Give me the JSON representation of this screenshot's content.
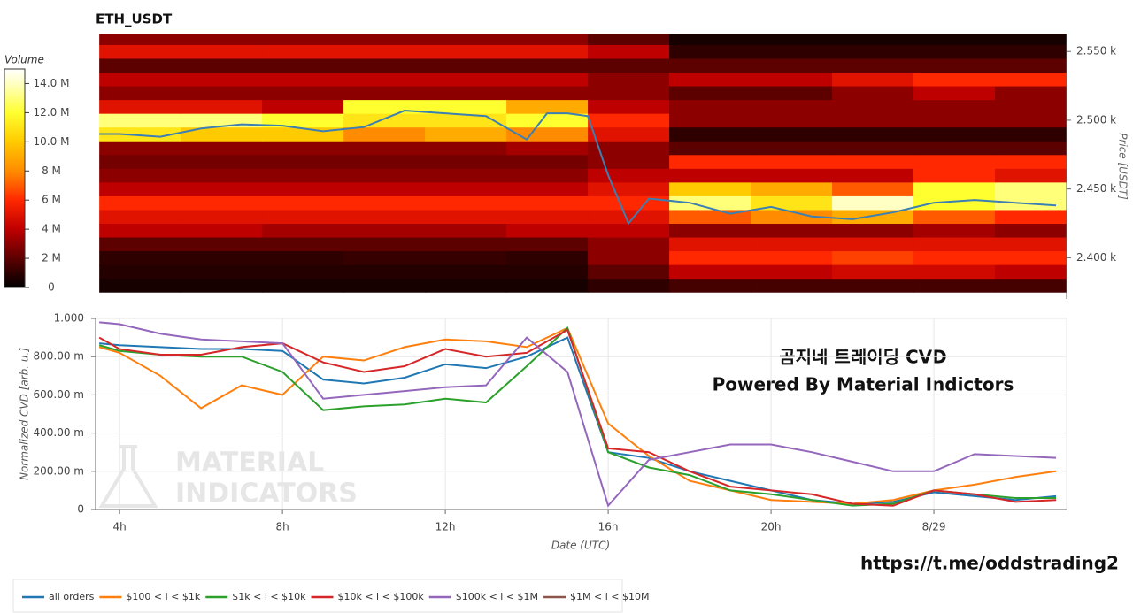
{
  "chart_data": [
    {
      "type": "heatmap",
      "title": "ETH_USDT",
      "colorbar_title": "Volume",
      "y_label": "Price [USDT]",
      "xlim": [
        3.41,
        27.26
      ],
      "ylim": [
        2370,
        2563
      ],
      "clim": [
        0,
        15
      ],
      "yticks": [
        {
          "value": 2400,
          "label": "2.400 k"
        },
        {
          "value": 2450,
          "label": "2.450 k"
        },
        {
          "value": 2500,
          "label": "2.500 k"
        },
        {
          "value": 2550,
          "label": "2.550 k"
        }
      ],
      "cticks": [
        0,
        {
          "value": 2,
          "label": "2 M"
        },
        {
          "value": 4,
          "label": "4 M"
        },
        {
          "value": 6,
          "label": "6 M"
        },
        {
          "value": 8,
          "label": "8 M"
        },
        {
          "value": 10,
          "label": "10.0 M"
        },
        {
          "value": 12,
          "label": "12.0 M"
        },
        {
          "value": 14,
          "label": "14.0 M"
        }
      ],
      "x_bins": [
        3.5,
        5.5,
        7.5,
        9.5,
        11.5,
        13.5,
        15.5,
        17.5,
        19.5,
        21.5,
        23.5,
        25.5,
        27.5
      ],
      "y_bins": [
        2375,
        2385,
        2395,
        2405,
        2415,
        2425,
        2435,
        2445,
        2455,
        2465,
        2475,
        2485,
        2495,
        2505,
        2515,
        2525,
        2535,
        2545,
        2555,
        2565
      ],
      "z": [
        [
          0.5,
          0.5,
          0.5,
          0.5,
          0.5,
          0.5,
          1,
          1.5,
          1.5,
          1.5,
          1.5,
          1.5
        ],
        [
          0.8,
          0.8,
          0.8,
          0.8,
          0.8,
          0.8,
          2,
          4,
          4,
          4.5,
          4.5,
          4
        ],
        [
          1,
          1,
          1,
          1.2,
          1.2,
          1,
          3,
          6,
          6,
          6.5,
          6,
          6
        ],
        [
          2,
          2,
          2,
          2,
          2,
          2,
          3,
          5,
          5,
          5,
          5,
          5
        ],
        [
          4,
          4,
          3.5,
          3.5,
          3.5,
          4,
          4,
          3,
          3,
          3,
          3.5,
          3
        ],
        [
          5,
          5,
          5,
          5,
          5,
          5,
          5,
          7,
          8,
          9,
          7,
          6
        ],
        [
          6,
          6,
          6,
          6,
          6,
          6,
          6,
          13,
          11,
          14,
          12,
          13
        ],
        [
          4,
          4,
          4,
          4,
          4,
          4,
          5,
          10,
          9,
          7,
          12,
          13
        ],
        [
          3,
          3,
          3,
          3,
          3,
          3,
          4,
          4,
          4,
          4,
          6,
          5
        ],
        [
          2.5,
          2.5,
          2.5,
          2.5,
          2.5,
          2.5,
          3,
          6,
          6,
          6,
          6,
          6
        ],
        [
          3,
          3,
          3,
          3,
          3,
          3.5,
          3,
          2,
          2,
          2,
          2,
          2
        ],
        [
          11,
          10,
          10,
          8,
          9,
          8,
          5,
          1,
          1,
          1,
          1,
          1
        ],
        [
          13,
          13,
          12,
          11,
          11,
          12,
          6,
          3,
          3,
          3,
          3,
          3
        ],
        [
          5,
          5,
          4,
          12,
          12,
          9,
          4,
          3,
          3,
          3,
          3,
          3
        ],
        [
          3,
          3,
          3,
          3,
          3,
          3,
          3,
          2,
          2,
          3,
          4,
          3
        ],
        [
          4,
          4,
          4,
          4,
          4,
          4,
          3,
          4,
          4,
          5,
          6,
          6
        ],
        [
          2,
          2,
          2,
          2,
          2,
          2,
          2,
          2,
          2,
          2,
          2,
          2
        ],
        [
          5,
          5,
          5,
          5,
          5,
          5,
          4,
          1,
          1,
          1,
          1,
          1
        ],
        [
          3,
          3,
          3,
          3,
          3,
          3,
          2,
          0.5,
          0.5,
          0.5,
          0.5,
          0.5
        ]
      ],
      "price": {
        "color": "#3b7fb3",
        "x": [
          3.5,
          4,
          5,
          6,
          7,
          8,
          9,
          10,
          11,
          12,
          13,
          14,
          14.5,
          15,
          15.5,
          16,
          16.5,
          17,
          18,
          19,
          20,
          21,
          22,
          23,
          24,
          25,
          26,
          27
        ],
        "values": [
          2490,
          2490,
          2488,
          2494,
          2497,
          2496,
          2492,
          2495,
          2507,
          2505,
          2503,
          2486,
          2505,
          2505,
          2503,
          2460,
          2425,
          2443,
          2440,
          2432,
          2437,
          2430,
          2428,
          2433,
          2440,
          2442,
          2440,
          2438
        ]
      }
    },
    {
      "type": "line",
      "x_label": "Date (UTC)",
      "y_label": "Normalized CVD [arb. u.]",
      "grid": true,
      "xlim": [
        3.41,
        27.26
      ],
      "ylim": [
        0,
        1
      ],
      "xticks": [
        {
          "value": 4,
          "label": "4h"
        },
        {
          "value": 8,
          "label": "8h"
        },
        {
          "value": 12,
          "label": "12h"
        },
        {
          "value": 16,
          "label": "16h"
        },
        {
          "value": 20,
          "label": "20h"
        },
        {
          "value": 24,
          "label": "8/29"
        }
      ],
      "yticks": [
        0,
        {
          "value": 0.2,
          "label": "200.00 m"
        },
        {
          "value": 0.4,
          "label": "400.00 m"
        },
        {
          "value": 0.6,
          "label": "600.00 m"
        },
        {
          "value": 0.8,
          "label": "800.00 m"
        },
        {
          "value": 1,
          "label": "1.000"
        }
      ],
      "x": [
        3.5,
        4,
        5,
        6,
        7,
        8,
        9,
        10,
        11,
        12,
        13,
        14,
        15,
        16,
        17,
        18,
        19,
        20,
        21,
        22,
        23,
        24,
        25,
        26,
        27
      ],
      "series": [
        {
          "name": "all orders",
          "color": "#1f77b4",
          "values": [
            0.87,
            0.86,
            0.85,
            0.84,
            0.84,
            0.83,
            0.68,
            0.66,
            0.69,
            0.76,
            0.74,
            0.8,
            0.9,
            0.3,
            0.27,
            0.2,
            0.15,
            0.1,
            0.05,
            0.03,
            0.04,
            0.09,
            0.07,
            0.05,
            0.07
          ]
        },
        {
          "name": "$100 < i < $1k",
          "color": "#ff7f0e",
          "values": [
            0.85,
            0.82,
            0.7,
            0.53,
            0.65,
            0.6,
            0.8,
            0.78,
            0.85,
            0.89,
            0.88,
            0.85,
            0.95,
            0.45,
            0.28,
            0.15,
            0.1,
            0.05,
            0.04,
            0.03,
            0.05,
            0.1,
            0.13,
            0.17,
            0.2
          ]
        },
        {
          "name": "$1k < i < $10k",
          "color": "#2ca02c",
          "values": [
            0.86,
            0.83,
            0.81,
            0.8,
            0.8,
            0.72,
            0.52,
            0.54,
            0.55,
            0.58,
            0.56,
            0.75,
            0.95,
            0.3,
            0.22,
            0.18,
            0.1,
            0.08,
            0.05,
            0.02,
            0.03,
            0.1,
            0.08,
            0.06,
            0.06
          ]
        },
        {
          "name": "$10k < i < $100k",
          "color": "#d62728",
          "values": [
            0.9,
            0.84,
            0.81,
            0.81,
            0.85,
            0.87,
            0.77,
            0.72,
            0.75,
            0.84,
            0.8,
            0.82,
            0.94,
            0.32,
            0.3,
            0.2,
            0.12,
            0.1,
            0.08,
            0.03,
            0.02,
            0.1,
            0.08,
            0.04,
            0.05
          ]
        },
        {
          "name": "$100k < i < $1M",
          "color": "#9467bd",
          "values": [
            0.98,
            0.97,
            0.92,
            0.89,
            0.88,
            0.87,
            0.58,
            0.6,
            0.62,
            0.64,
            0.65,
            0.9,
            0.72,
            0.02,
            0.26,
            0.3,
            0.34,
            0.34,
            0.3,
            0.25,
            0.2,
            0.2,
            0.29,
            0.28,
            0.27
          ]
        },
        {
          "name": "$1M < i < $10M",
          "color": "#8c564b",
          "values": [
            null,
            null,
            null,
            null,
            null,
            null,
            null,
            null,
            null,
            null,
            null,
            null,
            null,
            null,
            null,
            null,
            null,
            null,
            null,
            null,
            null,
            null,
            null,
            null,
            null
          ]
        }
      ],
      "annotations": [
        "곰지네 트레이딩 CVD",
        "Powered By Material Indictors"
      ],
      "watermark": [
        "MATERIAL",
        "INDICATORS"
      ]
    }
  ],
  "footer": "https://t.me/oddstrading2"
}
